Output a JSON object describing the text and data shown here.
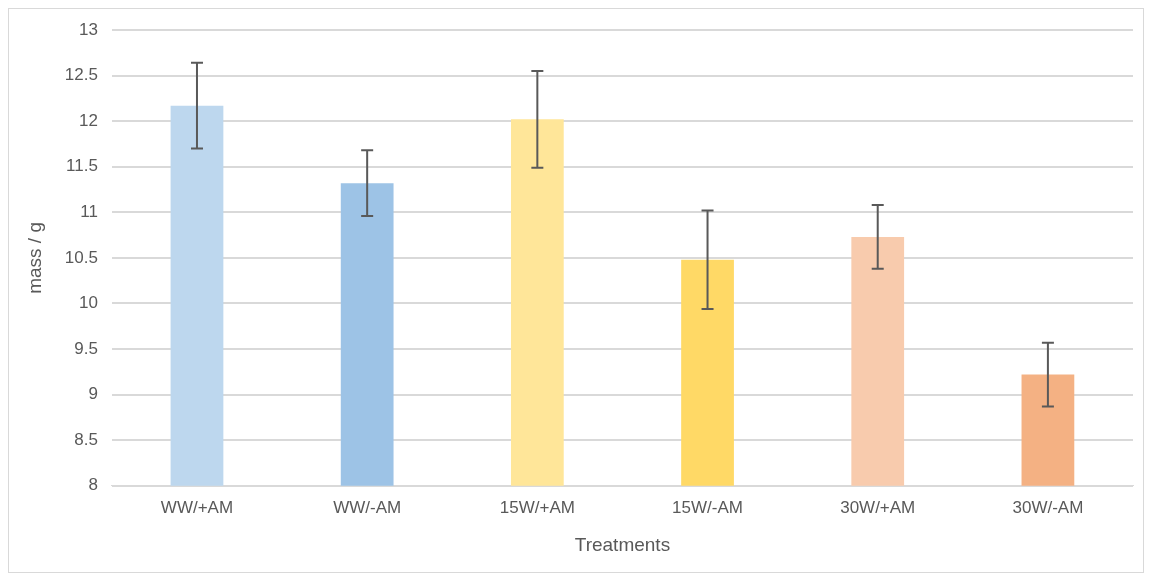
{
  "chart_data": {
    "type": "bar",
    "xlabel": "Treatments",
    "ylabel": "mass / g",
    "categories": [
      "WW/+AM",
      "WW/-AM",
      "15W/+AM",
      "15W/-AM",
      "30W/+AM",
      "30W/-AM"
    ],
    "values": [
      12.17,
      11.32,
      12.02,
      10.48,
      10.73,
      9.22
    ],
    "errors": [
      0.47,
      0.36,
      0.53,
      0.54,
      0.35,
      0.35
    ],
    "colors": [
      "#bdd7ee",
      "#9dc3e6",
      "#ffe699",
      "#ffd966",
      "#f8cbad",
      "#f4b183"
    ],
    "ylim": [
      8,
      13
    ],
    "yticks": [
      8,
      8.5,
      9,
      9.5,
      10,
      10.5,
      11,
      11.5,
      12,
      12.5,
      13
    ],
    "grid": "y",
    "legend": false
  }
}
